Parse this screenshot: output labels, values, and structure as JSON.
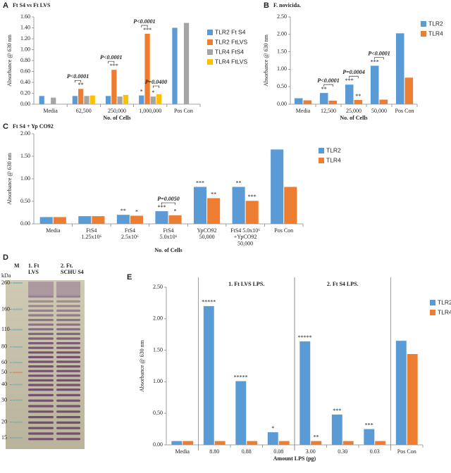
{
  "chart_data": [
    {
      "type": "bar",
      "panel": "A",
      "title": "Ft S4 vs Ft LVS",
      "y_label": "Absorbance @ 630 nm",
      "x_label": "No. of Cells",
      "legend": "right",
      "categories": [
        "Media",
        "62,500",
        "250,000",
        "1,000,000",
        "Pos Con"
      ],
      "ylim": [
        0,
        1.6
      ],
      "yticks": [
        {
          "value": 0,
          "label": "0.00"
        },
        {
          "value": 0.2,
          "label": "0.20"
        },
        {
          "value": 0.4,
          "label": "0.40"
        },
        {
          "value": 0.6,
          "label": "0.60"
        },
        {
          "value": 0.8,
          "label": "0.80"
        },
        {
          "value": 1,
          "label": "1.00"
        },
        {
          "value": 1.2,
          "label": "1.20"
        },
        {
          "value": 1.4,
          "label": "1.40"
        },
        {
          "value": 1.6,
          "label": "1.60"
        }
      ],
      "series": [
        {
          "name": "TLR2 Ft S4",
          "color": "#5b9bd5",
          "values": [
            0.15,
            0.15,
            0.15,
            0.16,
            1.4
          ],
          "stars": [
            null,
            null,
            null,
            "*",
            null
          ]
        },
        {
          "name": "TLR2 FtLVS",
          "color": "#ed7d31",
          "values": [
            null,
            0.28,
            0.63,
            1.29,
            null
          ],
          "stars": [
            null,
            "**",
            "***",
            "***",
            null
          ]
        },
        {
          "name": "TLR4 FtS4",
          "color": "#a5a5a5",
          "values": [
            0.12,
            0.15,
            0.14,
            0.14,
            1.49
          ],
          "stars": [
            null,
            null,
            null,
            "*",
            null
          ]
        },
        {
          "name": "TLR4 FtLVS",
          "color": "#ffc000",
          "values": [
            null,
            0.16,
            0.17,
            0.18,
            null
          ],
          "stars": [
            null,
            null,
            null,
            null,
            null
          ]
        }
      ],
      "brackets": [
        {
          "label": "P<0.0001",
          "category": "62,500",
          "series": [
            "TLR2 Ft S4",
            "TLR2 FtLVS"
          ]
        },
        {
          "label": "P<0.0001",
          "category": "250,000",
          "series": [
            "TLR2 Ft S4",
            "TLR2 FtLVS"
          ]
        },
        {
          "label": "P<0.0001",
          "category": "1,000,000",
          "series": [
            "TLR2 Ft S4",
            "TLR2 FtLVS"
          ]
        },
        {
          "label": "P=0.0400",
          "category": "1,000,000",
          "series": [
            "TLR4 FtS4",
            "TLR4 FtLVS"
          ]
        }
      ]
    },
    {
      "type": "bar",
      "panel": "B",
      "title": "F. novicida.",
      "y_label": "Absorbance @ 630 nm",
      "x_label": "No. of Cells",
      "legend": "right",
      "categories": [
        "Media",
        "12,500",
        "25,000",
        "50,000",
        "Pos Con"
      ],
      "ylim": [
        0,
        2.5
      ],
      "yticks": [
        {
          "value": 0,
          "label": "0.00"
        },
        {
          "value": 0.5,
          "label": "0.50"
        },
        {
          "value": 1,
          "label": "1.00"
        },
        {
          "value": 1.5,
          "label": "1.50"
        },
        {
          "value": 2,
          "label": "2.00"
        },
        {
          "value": 2.5,
          "label": "2.50"
        }
      ],
      "series": [
        {
          "name": "TLR2",
          "color": "#5b9bd5",
          "values": [
            0.17,
            0.32,
            0.56,
            1.1,
            2.03
          ],
          "stars": [
            null,
            "**",
            "***",
            "***",
            null
          ]
        },
        {
          "name": "TLR4",
          "color": "#ed7d31",
          "values": [
            0.11,
            0.1,
            0.12,
            0.13,
            0.76
          ],
          "stars": [
            null,
            null,
            "**",
            null,
            null
          ]
        }
      ],
      "brackets": [
        {
          "label": "P<0.0001",
          "category": "12,500",
          "series": [
            "TLR2",
            "TLR4"
          ]
        },
        {
          "label": "P=0.0004",
          "category": "25,000",
          "series": [
            "TLR2",
            "TLR4"
          ]
        },
        {
          "label": "P<0.0001",
          "category": "50,000",
          "series": [
            "TLR2",
            "TLR4"
          ]
        }
      ]
    },
    {
      "type": "bar",
      "panel": "C",
      "title": "Ft S4 + Yp CO92",
      "y_label": "Absorbance @ 630 nm",
      "x_label": "No. of Cells",
      "legend": "right",
      "categories": [
        "Media",
        "FtS4\n1.25x10⁶",
        "FtS4\n2.5x10⁶",
        "FtS4\n5.0x10⁶",
        "YpCO92\n50,000",
        "FtS4 5.0x10⁶\n+YpCO92\n50,000",
        "Pos Con"
      ],
      "ylim": [
        0,
        2
      ],
      "yticks": [
        {
          "value": 0,
          "label": "0.00"
        },
        {
          "value": 0.5,
          "label": "0.50"
        },
        {
          "value": 1,
          "label": "1.00"
        },
        {
          "value": 1.5,
          "label": "1.50"
        },
        {
          "value": 2,
          "label": "2.00"
        }
      ],
      "series": [
        {
          "name": "TLR2",
          "color": "#5b9bd5",
          "values": [
            0.15,
            0.17,
            0.2,
            0.28,
            0.82,
            0.82,
            1.65
          ],
          "stars": [
            null,
            null,
            "**",
            "***",
            "***",
            "**",
            null
          ]
        },
        {
          "name": "TLR4",
          "color": "#ed7d31",
          "values": [
            0.15,
            0.17,
            0.18,
            0.19,
            0.57,
            0.51,
            0.82
          ],
          "stars": [
            null,
            null,
            "*",
            "*",
            "**",
            "***",
            null
          ]
        }
      ],
      "brackets": [
        {
          "label": "P=0.0050",
          "category": "FtS4\n5.0x10⁶",
          "series": [
            "TLR2",
            "TLR4"
          ]
        }
      ]
    },
    {
      "type": "bar",
      "panel": "E",
      "y_label": "Absorbance @ 630 nm",
      "x_label": "Amount LPS (pg)",
      "legend": "right",
      "categories": [
        "Media",
        "8.80",
        "0.88",
        "0.08",
        "3.00",
        "0.30",
        "0.03",
        "Pos Con"
      ],
      "ylim": [
        0,
        2.5
      ],
      "yticks": [
        {
          "value": 0,
          "label": "0.00"
        },
        {
          "value": 0.5,
          "label": "0.50"
        },
        {
          "value": 1,
          "label": "1.00"
        },
        {
          "value": 1.5,
          "label": "1.50"
        },
        {
          "value": 2,
          "label": "2.00"
        },
        {
          "value": 2.5,
          "label": "2.50"
        }
      ],
      "series": [
        {
          "name": "TLR2",
          "color": "#5b9bd5",
          "values": [
            0.06,
            2.2,
            1.01,
            0.2,
            1.64,
            0.48,
            0.25,
            1.65
          ],
          "stars": [
            null,
            "*****",
            "*****",
            "*",
            "*****",
            "***",
            "***",
            null
          ]
        },
        {
          "name": "TLR4",
          "color": "#ed7d31",
          "values": [
            0.06,
            0.06,
            0.06,
            0.06,
            0.06,
            0.06,
            0.06,
            1.44
          ],
          "stars": [
            null,
            null,
            null,
            null,
            "**",
            null,
            null,
            null
          ]
        }
      ],
      "groups": [
        {
          "label": "1. Ft LVS LPS.",
          "categories": [
            "8.80",
            "0.88",
            "0.08"
          ]
        },
        {
          "label": "2. Ft S4 LPS.",
          "categories": [
            "3.00",
            "0.30",
            "0.03"
          ]
        }
      ]
    }
  ],
  "gel": {
    "panel": "D",
    "lanes": [
      "M",
      "1. Ft\nLVS",
      "2. Ft.\nSCHU S4"
    ],
    "unit": "kDa",
    "markers": [
      260,
      160,
      110,
      80,
      60,
      50,
      40,
      30,
      20,
      15
    ]
  }
}
